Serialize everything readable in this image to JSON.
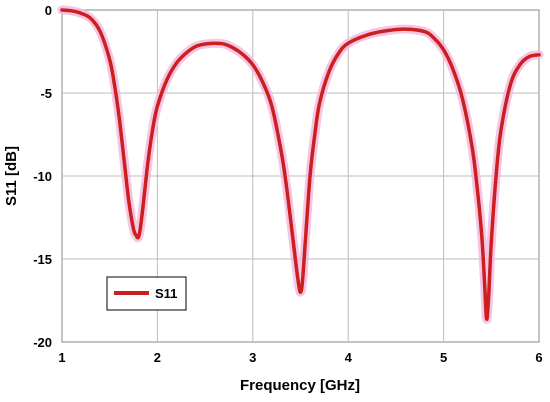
{
  "chart_data": {
    "type": "line",
    "title": "",
    "xlabel": "Frequency [GHz]",
    "ylabel": "S11 [dB]",
    "xlim": [
      1,
      6
    ],
    "ylim": [
      -20,
      0
    ],
    "xticks": [
      1,
      2,
      3,
      4,
      5,
      6
    ],
    "yticks": [
      0,
      -5,
      -10,
      -15,
      -20
    ],
    "xtick_labels": [
      "1",
      "2",
      "3",
      "4",
      "5",
      "6"
    ],
    "ytick_labels": [
      "0",
      "-5",
      "-10",
      "-15",
      "-20"
    ],
    "grid": true,
    "legend_position": "bottom-left",
    "series": [
      {
        "name": "S11",
        "color": "#cc1f1f",
        "x": [
          1.0,
          1.1,
          1.2,
          1.3,
          1.4,
          1.5,
          1.55,
          1.6,
          1.65,
          1.7,
          1.75,
          1.78,
          1.8,
          1.82,
          1.85,
          1.9,
          1.95,
          2.0,
          2.1,
          2.2,
          2.3,
          2.4,
          2.5,
          2.6,
          2.7,
          2.8,
          2.9,
          3.0,
          3.1,
          3.2,
          3.3,
          3.35,
          3.4,
          3.45,
          3.48,
          3.5,
          3.52,
          3.55,
          3.6,
          3.65,
          3.7,
          3.8,
          3.9,
          4.0,
          4.2,
          4.4,
          4.6,
          4.8,
          4.9,
          5.0,
          5.1,
          5.2,
          5.3,
          5.35,
          5.4,
          5.43,
          5.45,
          5.47,
          5.5,
          5.55,
          5.6,
          5.7,
          5.8,
          5.9,
          6.0
        ],
        "y": [
          0.0,
          -0.05,
          -0.2,
          -0.5,
          -1.3,
          -3.0,
          -4.5,
          -6.5,
          -9.0,
          -11.5,
          -13.2,
          -13.6,
          -13.7,
          -13.2,
          -11.8,
          -9.2,
          -7.2,
          -5.8,
          -4.2,
          -3.2,
          -2.6,
          -2.2,
          -2.05,
          -2.0,
          -2.05,
          -2.3,
          -2.7,
          -3.3,
          -4.3,
          -5.8,
          -8.6,
          -10.5,
          -12.8,
          -15.2,
          -16.5,
          -17.0,
          -16.4,
          -14.0,
          -10.0,
          -7.5,
          -5.6,
          -3.7,
          -2.6,
          -2.0,
          -1.5,
          -1.25,
          -1.15,
          -1.3,
          -1.7,
          -2.4,
          -3.6,
          -5.4,
          -8.3,
          -10.6,
          -13.6,
          -16.5,
          -18.6,
          -17.5,
          -14.0,
          -10.0,
          -7.3,
          -4.5,
          -3.3,
          -2.8,
          -2.7
        ]
      }
    ],
    "legend": [
      {
        "label": "S11",
        "color": "#cc1f1f"
      }
    ]
  }
}
